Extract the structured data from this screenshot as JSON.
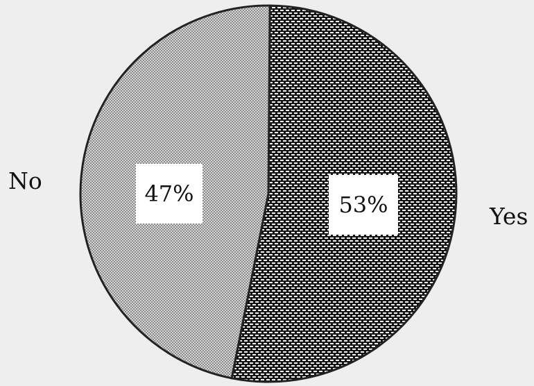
{
  "chart_data": {
    "type": "pie",
    "categories": [
      "Yes",
      "No"
    ],
    "values": [
      53,
      47
    ],
    "value_labels": [
      "53%",
      "47%"
    ],
    "title": "",
    "slice_styles": {
      "Yes": "dark-checker",
      "No": "light-stipple"
    },
    "colors": {
      "background": "#eeeeee",
      "outline": "#222222",
      "dark_slice": "#1a1a1a",
      "light_slice": "#bdbdbd",
      "label_box": "#ffffff"
    }
  }
}
